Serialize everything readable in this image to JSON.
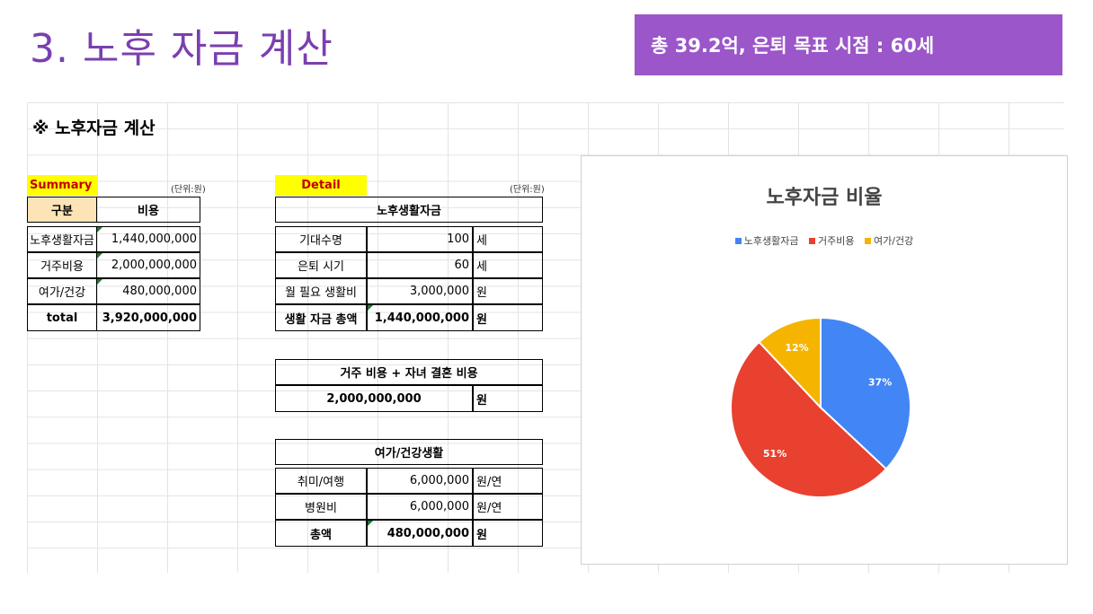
{
  "header": {
    "title": "3. 노후 자금 계산",
    "banner": "총 39.2억, 은퇴 목표 시점  : 60세"
  },
  "sheet": {
    "title": "※ 노후자금 계산",
    "summary": {
      "label": "Summary",
      "unit": "(단위:원)",
      "headers": [
        "구분",
        "비용"
      ],
      "rows": [
        {
          "name": "노후생활자금",
          "value": "1,440,000,000"
        },
        {
          "name": "거주비용",
          "value": "2,000,000,000"
        },
        {
          "name": "여가/건강",
          "value": "480,000,000"
        }
      ],
      "total_label": "total",
      "total_value": "3,920,000,000"
    },
    "detail": {
      "label": "Detail",
      "unit": "(단위:원)",
      "living": {
        "header": "노후생활자금",
        "rows": [
          {
            "name": "기대수명",
            "value": "100",
            "unit": "세"
          },
          {
            "name": "은퇴 시기",
            "value": "60",
            "unit": "세"
          },
          {
            "name": "월 필요 생활비",
            "value": "3,000,000",
            "unit": "원"
          }
        ],
        "total_name": "생활 자금 총액",
        "total_value": "1,440,000,000",
        "total_unit": "원"
      },
      "housing": {
        "header": "거주 비용 + 자녀 결혼 비용",
        "value": "2,000,000,000",
        "unit": "원"
      },
      "leisure": {
        "header": "여가/건강생활",
        "rows": [
          {
            "name": "취미/여행",
            "value": "6,000,000",
            "unit": "원/연"
          },
          {
            "name": "병원비",
            "value": "6,000,000",
            "unit": "원/연"
          }
        ],
        "total_name": "총액",
        "total_value": "480,000,000",
        "total_unit": "원"
      }
    }
  },
  "chart_data": {
    "type": "pie",
    "title": "노후자금 비율",
    "categories": [
      "노후생활자금",
      "거주비용",
      "여가/건강"
    ],
    "values": [
      37,
      51,
      12
    ],
    "labels": [
      "37%",
      "51%",
      "12%"
    ],
    "colors": [
      "#4285f4",
      "#e8412f",
      "#f4b400"
    ],
    "legend_position": "top"
  }
}
